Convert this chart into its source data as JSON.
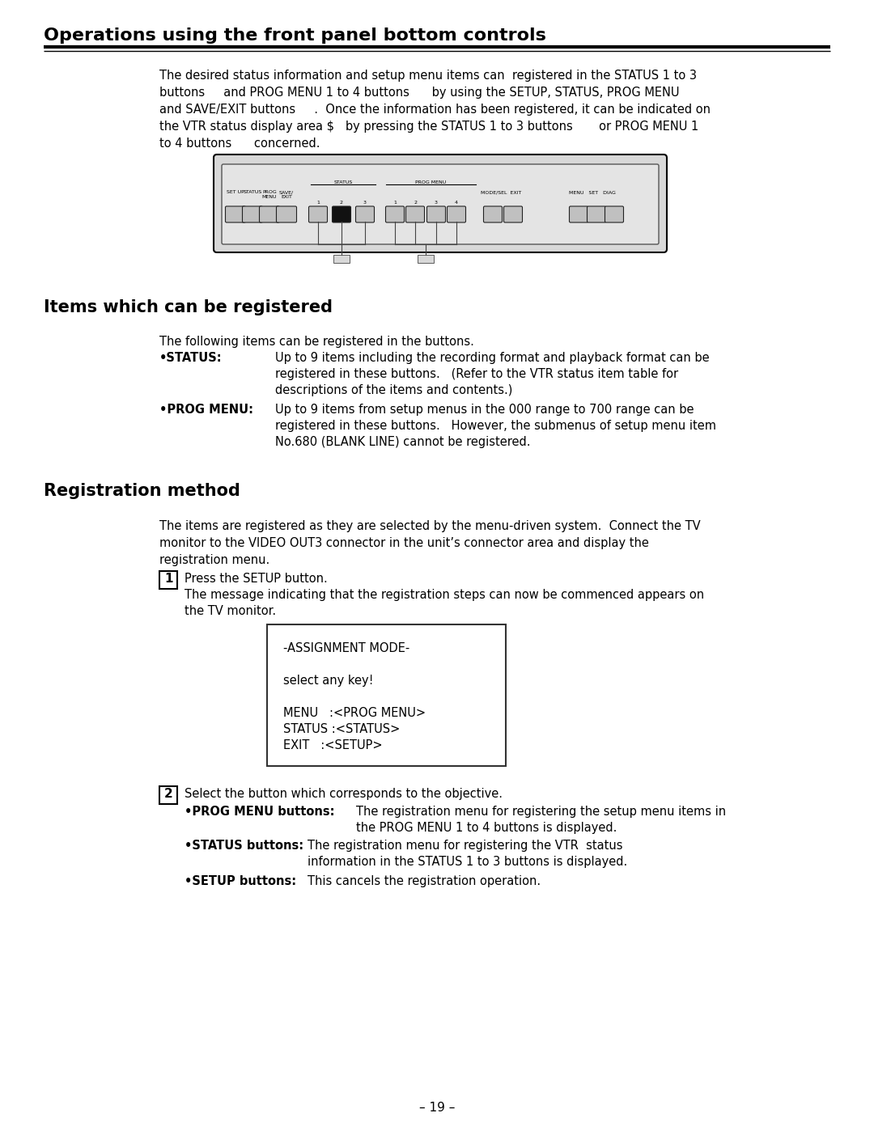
{
  "title": "Operations using the front panel bottom controls",
  "section1_title": "Items which can be registered",
  "section2_title": "Registration method",
  "page_number": "– 19 –",
  "bg_color": "#ffffff",
  "text_color": "#000000",
  "intro_lines": [
    "The desired status information and setup menu items can  registered in the STATUS 1 to 3",
    "buttons     and PROG MENU 1 to 4 buttons      by using the SETUP, STATUS, PROG MENU",
    "and SAVE/EXIT buttons     .  Once the information has been registered, it can be indicated on",
    "the VTR status display area $   by pressing the STATUS 1 to 3 buttons       or PROG MENU 1",
    "to 4 buttons      concerned."
  ],
  "items_intro": "The following items can be registered in the buttons.",
  "status_label": "•STATUS:",
  "status_lines": [
    "Up to 9 items including the recording format and playback format can be",
    "registered in these buttons.   (Refer to the VTR status item table for",
    "descriptions of the items and contents.)"
  ],
  "progmenu_label": "•PROG MENU:",
  "progmenu_lines": [
    "Up to 9 items from setup menus in the 000 range to 700 range can be",
    "registered in these buttons.   However, the submenus of setup menu item",
    "No.680 (BLANK LINE) cannot be registered."
  ],
  "reg_intro_lines": [
    "The items are registered as they are selected by the menu-driven system.  Connect the TV",
    "monitor to the VIDEO OUT3 connector in the unit’s connector area and display the",
    "registration menu."
  ],
  "step1_num": "1",
  "step1_line1": "Press the SETUP button.",
  "step1_line2": "The message indicating that the registration steps can now be commenced appears on",
  "step1_line3": "the TV monitor.",
  "box_lines": [
    "-ASSIGNMENT MODE-",
    "",
    "select any key!",
    "",
    "MENU   :<PROG MENU>",
    "STATUS :<STATUS>",
    "EXIT   :<SETUP>"
  ],
  "step2_num": "2",
  "step2_text": "Select the button which corresponds to the objective.",
  "prog_menu_btn_label": "•PROG MENU buttons:",
  "prog_menu_btn_lines": [
    "The registration menu for registering the setup menu items in",
    "the PROG MENU 1 to 4 buttons is displayed."
  ],
  "status_btn_label": "•STATUS buttons:",
  "status_btn_lines": [
    "The registration menu for registering the VTR  status",
    "information in the STATUS 1 to 3 buttons is displayed."
  ],
  "setup_btn_label": "•SETUP buttons:",
  "setup_btn_text": "This cancels the registration operation."
}
